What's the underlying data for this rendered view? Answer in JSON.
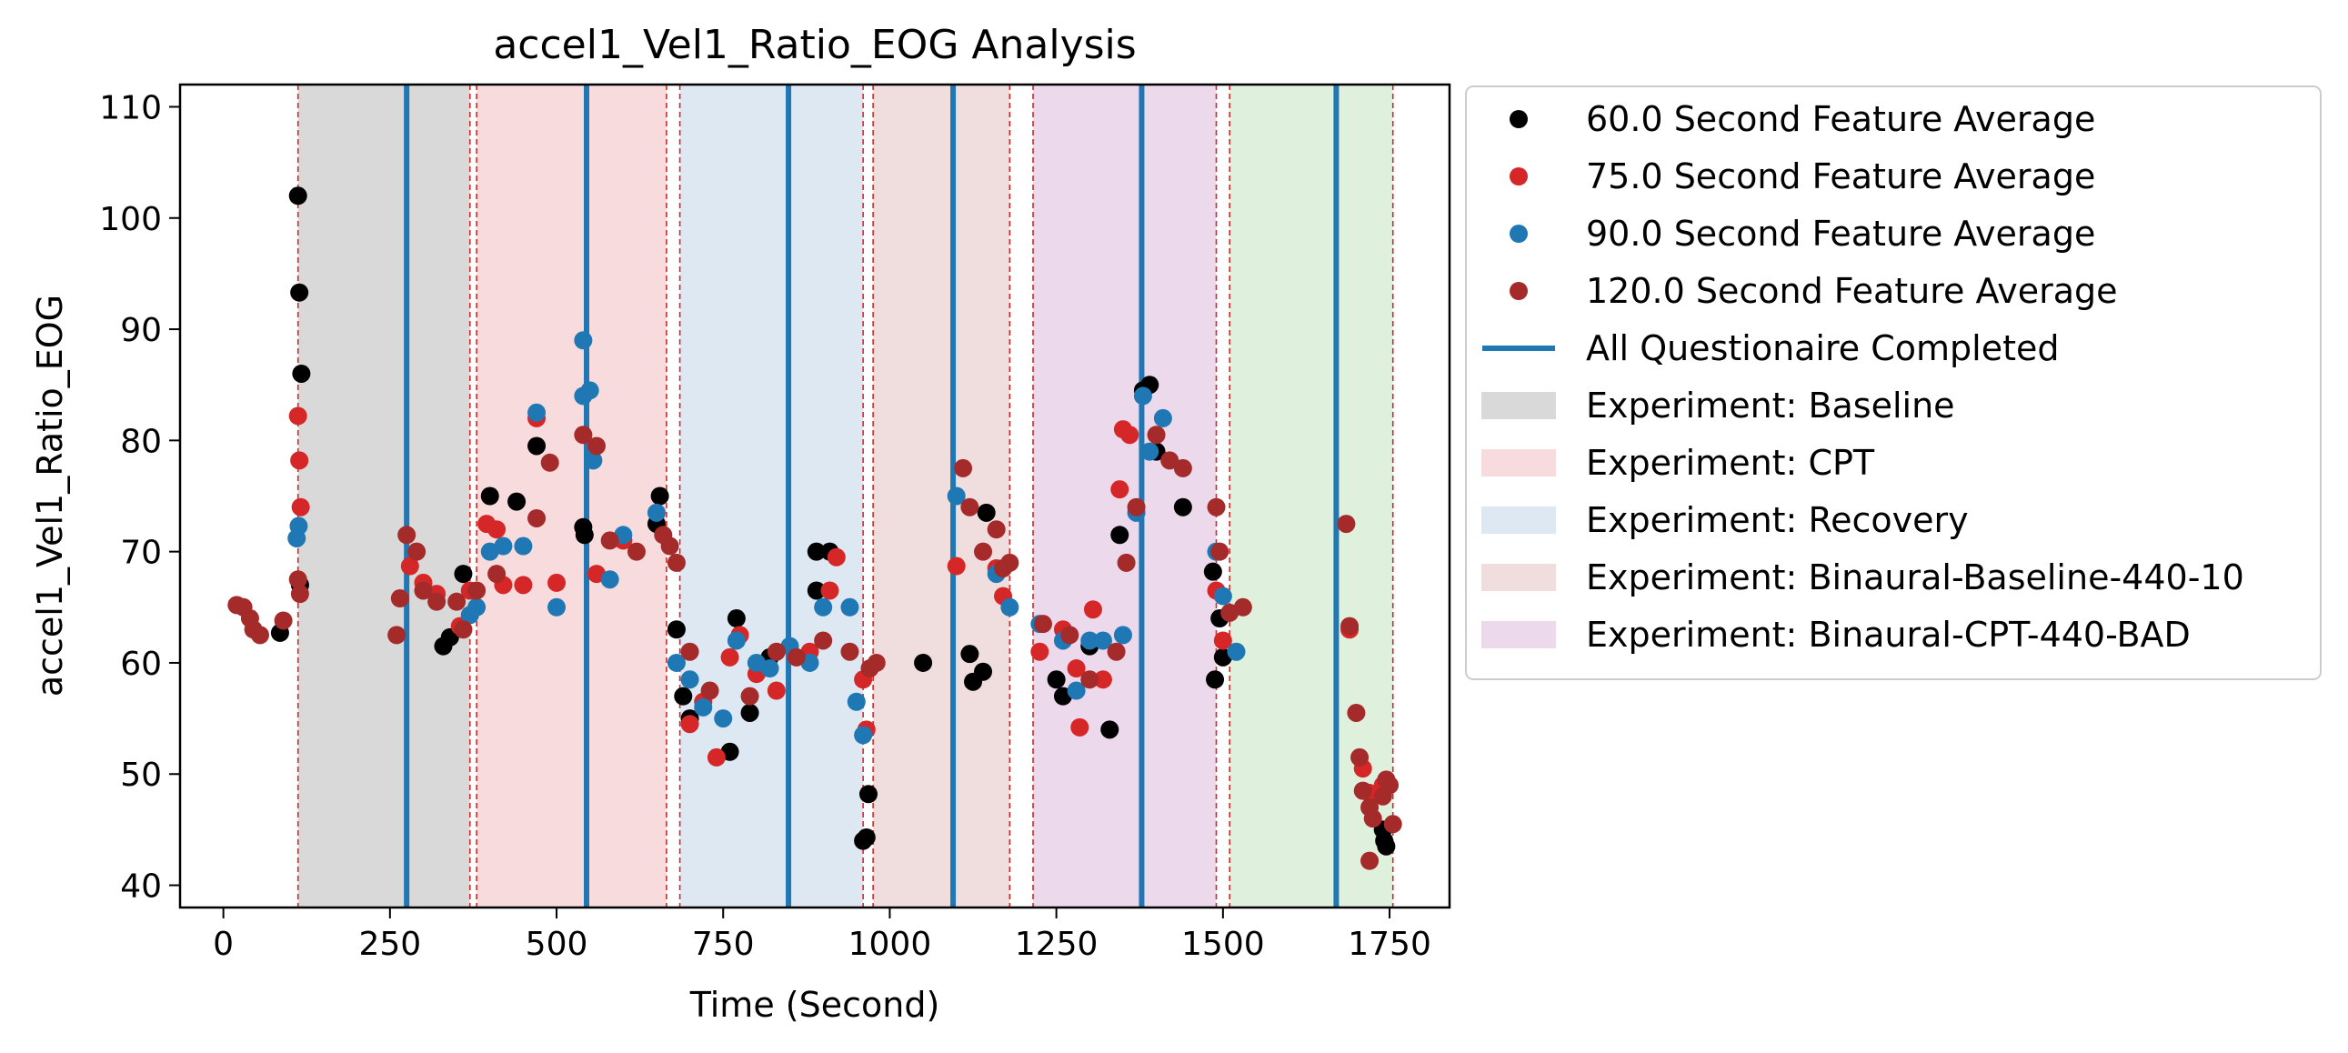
{
  "chart_data": {
    "type": "scatter",
    "title": "accel1_Vel1_Ratio_EOG Analysis",
    "xlabel": "Time (Second)",
    "ylabel": "accel1_Vel1_Ratio_EOG",
    "xlim": [
      -65,
      1840
    ],
    "ylim": [
      38,
      112
    ],
    "xticks": [
      0,
      250,
      500,
      750,
      1000,
      1250,
      1500,
      1750
    ],
    "yticks": [
      40,
      50,
      60,
      70,
      80,
      90,
      100,
      110
    ],
    "grid": false,
    "legend_position": "outside-right",
    "legend_entries": [
      {
        "label": "60.0 Second Feature Average",
        "kind": "point",
        "color": "#000000"
      },
      {
        "label": "75.0 Second Feature Average",
        "kind": "point",
        "color": "#d62728"
      },
      {
        "label": "90.0 Second Feature Average",
        "kind": "point",
        "color": "#1f77b4"
      },
      {
        "label": "120.0 Second Feature Average",
        "kind": "point",
        "color": "#a52a2a"
      },
      {
        "label": "All Questionaire Completed",
        "kind": "line",
        "color": "#1f77b4"
      },
      {
        "label": "Experiment: Baseline",
        "kind": "patch",
        "color": "#d9d9d9"
      },
      {
        "label": "Experiment: CPT",
        "kind": "patch",
        "color": "#f8dcdd"
      },
      {
        "label": "Experiment: Recovery",
        "kind": "patch",
        "color": "#dde8f3"
      },
      {
        "label": "Experiment: Binaural-Baseline-440-10",
        "kind": "patch",
        "color": "#f0dede"
      },
      {
        "label": "Experiment: Binaural-CPT-440-BAD",
        "kind": "patch",
        "color": "#ecdaec"
      }
    ],
    "regions": [
      {
        "start": 112,
        "end": 370,
        "color": "#d9d9d9"
      },
      {
        "start": 380,
        "end": 665,
        "color": "#f8dcdd"
      },
      {
        "start": 685,
        "end": 960,
        "color": "#dde8f3"
      },
      {
        "start": 975,
        "end": 1180,
        "color": "#f0dede"
      },
      {
        "start": 1215,
        "end": 1490,
        "color": "#ecdaec"
      },
      {
        "start": 1510,
        "end": 1755,
        "color": "#dff0dd"
      }
    ],
    "red_dashed_lines": [
      112,
      370,
      380,
      665,
      685,
      960,
      975,
      1180,
      1215,
      1490,
      1510,
      1755
    ],
    "questionnaire_lines": [
      275,
      545,
      848,
      1095,
      1378,
      1670
    ],
    "series": [
      {
        "name": "60.0 Second Feature Average",
        "color": "#000000",
        "points": [
          [
            85,
            62.7
          ],
          [
            112,
            102
          ],
          [
            114,
            93.3
          ],
          [
            117,
            86
          ],
          [
            115,
            67
          ],
          [
            330,
            61.5
          ],
          [
            340,
            62.3
          ],
          [
            360,
            68
          ],
          [
            400,
            75
          ],
          [
            440,
            74.5
          ],
          [
            470,
            79.5
          ],
          [
            540,
            72.2
          ],
          [
            542,
            71.5
          ],
          [
            650,
            72.5
          ],
          [
            655,
            75
          ],
          [
            680,
            63
          ],
          [
            690,
            57
          ],
          [
            700,
            55
          ],
          [
            760,
            52
          ],
          [
            770,
            64
          ],
          [
            790,
            55.5
          ],
          [
            820,
            60.5
          ],
          [
            890,
            66.5
          ],
          [
            890,
            70
          ],
          [
            910,
            70
          ],
          [
            960,
            44
          ],
          [
            965,
            44.3
          ],
          [
            968,
            48.2
          ],
          [
            1050,
            60
          ],
          [
            1120,
            60.8
          ],
          [
            1125,
            58.3
          ],
          [
            1140,
            59.2
          ],
          [
            1145,
            73.5
          ],
          [
            1250,
            58.5
          ],
          [
            1260,
            57
          ],
          [
            1300,
            61.5
          ],
          [
            1330,
            54
          ],
          [
            1345,
            71.5
          ],
          [
            1380,
            84.5
          ],
          [
            1390,
            85
          ],
          [
            1400,
            79
          ],
          [
            1440,
            74
          ],
          [
            1485,
            68.2
          ],
          [
            1488,
            58.5
          ],
          [
            1495,
            64
          ],
          [
            1500,
            60.5
          ],
          [
            1740,
            45
          ],
          [
            1745,
            43.5
          ],
          [
            1742,
            44
          ]
        ]
      },
      {
        "name": "75.0 Second Feature Average",
        "color": "#d62728",
        "points": [
          [
            112,
            82.2
          ],
          [
            114,
            78.2
          ],
          [
            116,
            74
          ],
          [
            280,
            68.7
          ],
          [
            300,
            67.2
          ],
          [
            320,
            66.2
          ],
          [
            355,
            63.3
          ],
          [
            370,
            66.5
          ],
          [
            395,
            72.5
          ],
          [
            410,
            72
          ],
          [
            420,
            67
          ],
          [
            450,
            67
          ],
          [
            470,
            82
          ],
          [
            500,
            67.2
          ],
          [
            560,
            68
          ],
          [
            600,
            71
          ],
          [
            700,
            54.5
          ],
          [
            720,
            56.5
          ],
          [
            740,
            51.5
          ],
          [
            760,
            60.5
          ],
          [
            775,
            62.5
          ],
          [
            800,
            59
          ],
          [
            830,
            57.5
          ],
          [
            880,
            61
          ],
          [
            920,
            69.5
          ],
          [
            910,
            66.5
          ],
          [
            960,
            58.5
          ],
          [
            965,
            54
          ],
          [
            1100,
            68.7
          ],
          [
            1160,
            68.5
          ],
          [
            1170,
            66
          ],
          [
            1225,
            61
          ],
          [
            1260,
            63
          ],
          [
            1280,
            59.5
          ],
          [
            1285,
            54.2
          ],
          [
            1305,
            64.8
          ],
          [
            1320,
            58.5
          ],
          [
            1345,
            75.6
          ],
          [
            1350,
            81
          ],
          [
            1360,
            80.5
          ],
          [
            1490,
            66.5
          ],
          [
            1500,
            62
          ],
          [
            1690,
            63
          ],
          [
            1710,
            50.5
          ],
          [
            1720,
            48.3
          ],
          [
            1740,
            49
          ]
        ]
      },
      {
        "name": "90.0 Second Feature Average",
        "color": "#1f77b4",
        "points": [
          [
            110,
            71.2
          ],
          [
            113,
            72.3
          ],
          [
            370,
            64.3
          ],
          [
            380,
            65
          ],
          [
            400,
            70
          ],
          [
            420,
            70.5
          ],
          [
            450,
            70.5
          ],
          [
            470,
            82.5
          ],
          [
            500,
            65
          ],
          [
            540,
            84
          ],
          [
            540,
            89
          ],
          [
            550,
            84.5
          ],
          [
            555,
            78.2
          ],
          [
            580,
            67.5
          ],
          [
            600,
            71.5
          ],
          [
            650,
            73.5
          ],
          [
            680,
            60
          ],
          [
            700,
            58.5
          ],
          [
            720,
            56
          ],
          [
            750,
            55
          ],
          [
            770,
            62
          ],
          [
            800,
            60
          ],
          [
            820,
            59.5
          ],
          [
            850,
            61.5
          ],
          [
            880,
            60
          ],
          [
            900,
            65
          ],
          [
            940,
            65
          ],
          [
            950,
            56.5
          ],
          [
            960,
            53.5
          ],
          [
            1100,
            75
          ],
          [
            1160,
            68
          ],
          [
            1180,
            65
          ],
          [
            1225,
            63.5
          ],
          [
            1260,
            62
          ],
          [
            1280,
            57.5
          ],
          [
            1300,
            62
          ],
          [
            1320,
            62
          ],
          [
            1350,
            62.5
          ],
          [
            1370,
            73.5
          ],
          [
            1380,
            84
          ],
          [
            1390,
            79
          ],
          [
            1410,
            82
          ],
          [
            1490,
            70
          ],
          [
            1500,
            66
          ],
          [
            1520,
            61
          ]
        ]
      },
      {
        "name": "120.0 Second Feature Average",
        "color": "#a52a2a",
        "points": [
          [
            20,
            65.2
          ],
          [
            30,
            65
          ],
          [
            40,
            64
          ],
          [
            45,
            63
          ],
          [
            55,
            62.5
          ],
          [
            90,
            63.8
          ],
          [
            112,
            67.5
          ],
          [
            115,
            66.2
          ],
          [
            260,
            62.5
          ],
          [
            265,
            65.8
          ],
          [
            275,
            71.5
          ],
          [
            290,
            70
          ],
          [
            300,
            66.5
          ],
          [
            320,
            65.5
          ],
          [
            350,
            65.5
          ],
          [
            360,
            63
          ],
          [
            380,
            66.5
          ],
          [
            410,
            68
          ],
          [
            470,
            73
          ],
          [
            490,
            78
          ],
          [
            540,
            80.5
          ],
          [
            560,
            79.5
          ],
          [
            580,
            71
          ],
          [
            620,
            70
          ],
          [
            660,
            71.5
          ],
          [
            670,
            70.5
          ],
          [
            680,
            69
          ],
          [
            700,
            61
          ],
          [
            730,
            57.5
          ],
          [
            790,
            57
          ],
          [
            830,
            61
          ],
          [
            860,
            60.5
          ],
          [
            900,
            62
          ],
          [
            940,
            61
          ],
          [
            970,
            59.5
          ],
          [
            980,
            60
          ],
          [
            1110,
            77.5
          ],
          [
            1120,
            74
          ],
          [
            1140,
            70
          ],
          [
            1160,
            72
          ],
          [
            1170,
            68.5
          ],
          [
            1180,
            69
          ],
          [
            1230,
            63.5
          ],
          [
            1270,
            62.5
          ],
          [
            1300,
            58.5
          ],
          [
            1340,
            61
          ],
          [
            1355,
            69
          ],
          [
            1370,
            74
          ],
          [
            1400,
            80.5
          ],
          [
            1420,
            78.2
          ],
          [
            1440,
            77.5
          ],
          [
            1490,
            74
          ],
          [
            1495,
            70
          ],
          [
            1510,
            64.5
          ],
          [
            1530,
            65
          ],
          [
            1685,
            72.5
          ],
          [
            1690,
            63.3
          ],
          [
            1700,
            55.5
          ],
          [
            1705,
            51.5
          ],
          [
            1710,
            48.5
          ],
          [
            1720,
            47
          ],
          [
            1725,
            46
          ],
          [
            1740,
            48
          ],
          [
            1745,
            49.5
          ],
          [
            1750,
            49
          ],
          [
            1755,
            45.5
          ],
          [
            1720,
            42.2
          ]
        ]
      }
    ]
  }
}
